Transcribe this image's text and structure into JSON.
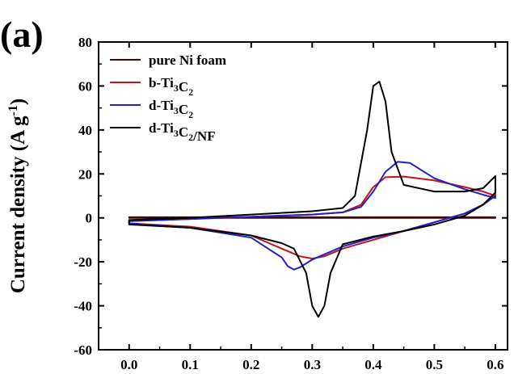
{
  "panel_label": "(a)",
  "chart_data": {
    "type": "line",
    "title": "",
    "xlabel": "",
    "ylabel": "Current density (A g-1)",
    "ylabel_parts": {
      "main": "Current density (A g",
      "sup": "-1",
      "end": ")"
    },
    "xlim": [
      -0.05,
      0.62
    ],
    "ylim": [
      -60,
      80
    ],
    "x_ticks": [
      0.0,
      0.1,
      0.2,
      0.3,
      0.4,
      0.5,
      0.6
    ],
    "x_tick_labels": [
      "0.0",
      "0.1",
      "0.2",
      "0.3",
      "0.4",
      "0.5",
      "0.6"
    ],
    "y_ticks": [
      -60,
      -40,
      -20,
      0,
      20,
      40,
      60,
      80
    ],
    "y_tick_labels": [
      "-60",
      "-40",
      "-20",
      "0",
      "20",
      "40",
      "60",
      "80"
    ],
    "grid": false,
    "legend_position": "top-left",
    "series": [
      {
        "name": "pure Ni foam",
        "legend": {
          "parts": [
            {
              "text": "pure Ni foam"
            }
          ]
        },
        "color": "#3a0a0a",
        "x": [
          0.0,
          0.1,
          0.2,
          0.3,
          0.4,
          0.5,
          0.6,
          0.6,
          0.5,
          0.4,
          0.3,
          0.2,
          0.1,
          0.0
        ],
        "y": [
          0.3,
          0.3,
          0.3,
          0.3,
          0.3,
          0.3,
          0.3,
          0.0,
          0.0,
          0.0,
          0.0,
          0.0,
          0.0,
          0.0
        ]
      },
      {
        "name": "b-Ti3C2",
        "legend": {
          "parts": [
            {
              "text": "b-Ti"
            },
            {
              "text": "3",
              "sub": true
            },
            {
              "text": "C"
            },
            {
              "text": "2",
              "sub": true
            }
          ]
        },
        "color": "#c0151b",
        "x": [
          0.0,
          0.1,
          0.2,
          0.3,
          0.35,
          0.38,
          0.4,
          0.42,
          0.45,
          0.5,
          0.55,
          0.58,
          0.6,
          0.6,
          0.58,
          0.55,
          0.5,
          0.45,
          0.4,
          0.35,
          0.32,
          0.3,
          0.28,
          0.25,
          0.2,
          0.1,
          0.0
        ],
        "y": [
          -1.5,
          -0.5,
          0.5,
          1.5,
          2.5,
          6.0,
          14.0,
          18.5,
          18.8,
          17.0,
          14.0,
          12.0,
          10.0,
          11.0,
          6.0,
          2.0,
          -2.0,
          -6.0,
          -10.0,
          -14.0,
          -17.5,
          -18.5,
          -17.5,
          -14.0,
          -8.0,
          -4.0,
          -2.5
        ]
      },
      {
        "name": "d-Ti3C2",
        "legend": {
          "parts": [
            {
              "text": "d-Ti"
            },
            {
              "text": "3",
              "sub": true
            },
            {
              "text": "C"
            },
            {
              "text": "2",
              "sub": true
            }
          ]
        },
        "color": "#2020c8",
        "x": [
          0.0,
          0.1,
          0.2,
          0.3,
          0.35,
          0.38,
          0.4,
          0.42,
          0.44,
          0.46,
          0.5,
          0.55,
          0.58,
          0.6,
          0.6,
          0.58,
          0.55,
          0.5,
          0.45,
          0.4,
          0.35,
          0.3,
          0.28,
          0.27,
          0.26,
          0.25,
          0.2,
          0.1,
          0.0
        ],
        "y": [
          -1.5,
          -0.5,
          0.5,
          1.5,
          2.5,
          5.0,
          12.0,
          21.0,
          25.5,
          25.0,
          18.0,
          13.0,
          10.5,
          9.0,
          10.0,
          6.0,
          2.0,
          -2.0,
          -6.0,
          -9.0,
          -13.0,
          -19.0,
          -22.5,
          -23.5,
          -22.0,
          -18.0,
          -9.0,
          -4.5,
          -2.5
        ]
      },
      {
        "name": "d-Ti3C2/NF",
        "legend": {
          "parts": [
            {
              "text": "d-Ti"
            },
            {
              "text": "3",
              "sub": true
            },
            {
              "text": "C"
            },
            {
              "text": "2",
              "sub": true
            },
            {
              "text": "/NF"
            }
          ]
        },
        "color": "#000000",
        "x": [
          0.0,
          0.1,
          0.2,
          0.3,
          0.35,
          0.37,
          0.39,
          0.4,
          0.41,
          0.42,
          0.43,
          0.45,
          0.5,
          0.55,
          0.58,
          0.6,
          0.6,
          0.58,
          0.55,
          0.5,
          0.45,
          0.4,
          0.35,
          0.33,
          0.32,
          0.31,
          0.3,
          0.29,
          0.27,
          0.25,
          0.2,
          0.1,
          0.0
        ],
        "y": [
          -1.0,
          0.0,
          1.5,
          3.0,
          4.5,
          10.0,
          40.0,
          60.0,
          62.0,
          53.0,
          30.0,
          15.0,
          12.0,
          12.0,
          13.5,
          19.0,
          11.5,
          6.0,
          1.0,
          -3.0,
          -6.0,
          -8.5,
          -12.0,
          -25.0,
          -40.0,
          -45.0,
          -40.0,
          -25.0,
          -14.0,
          -11.5,
          -8.0,
          -4.5,
          -3.0
        ]
      }
    ]
  }
}
